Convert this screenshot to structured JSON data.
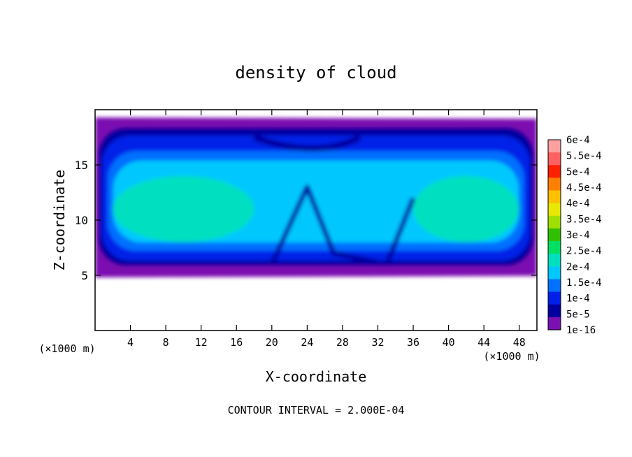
{
  "chart_data": {
    "type": "heatmap",
    "title": "density of cloud",
    "xlabel": "X-coordinate",
    "ylabel": "Z-coordinate",
    "x_unit": "(×1000 m)",
    "y_unit": "(×1000 m)",
    "xlim": [
      0,
      50
    ],
    "ylim": [
      0,
      20
    ],
    "x_ticks": [
      "4",
      "8",
      "12",
      "16",
      "20",
      "24",
      "28",
      "32",
      "36",
      "40",
      "44",
      "48"
    ],
    "y_ticks": [
      "5",
      "10",
      "15"
    ],
    "footer": "CONTOUR INTERVAL = 2.000E-04",
    "colorbar": {
      "labels": [
        "6e-4",
        "5.5e-4",
        "5e-4",
        "4.5e-4",
        "4e-4",
        "3.5e-4",
        "3e-4",
        "2.5e-4",
        "2e-4",
        "1.5e-4",
        "1e-4",
        "5e-5",
        "1e-16"
      ],
      "colors": [
        "#ffa0a0",
        "#ff6060",
        "#ff2000",
        "#ff8000",
        "#ffc000",
        "#e8e800",
        "#a0e000",
        "#30c000",
        "#00e060",
        "#00e0c0",
        "#00c8ff",
        "#0070ff",
        "#0020e8",
        "#0000a0",
        "#7b10b0"
      ]
    },
    "field": {
      "x_range": [
        0,
        50
      ],
      "cloud_base": 5.2,
      "cloud_top": 19.3,
      "peak_value": 0.0002,
      "peak_region_x": [
        [
          2,
          18
        ],
        [
          36,
          48
        ]
      ],
      "peak_region_z": [
        8,
        14
      ]
    }
  }
}
